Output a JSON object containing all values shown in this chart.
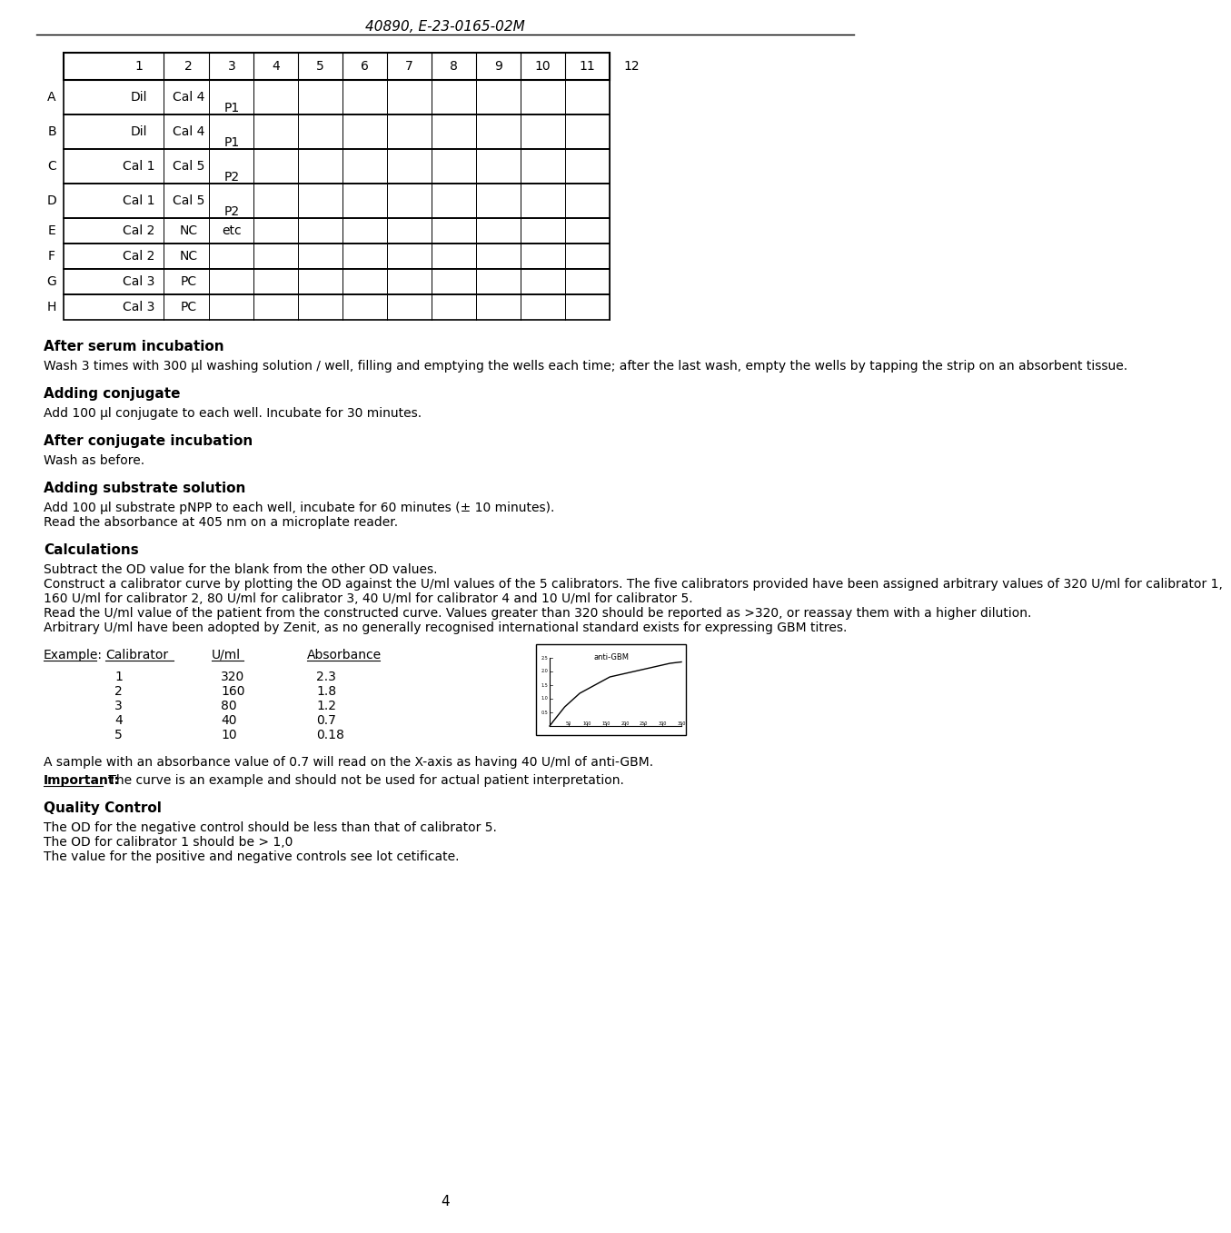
{
  "header": "40890, E-23-0165-02M",
  "page_number": "4",
  "table_cols": [
    "1",
    "2",
    "3",
    "4",
    "5",
    "6",
    "7",
    "8",
    "9",
    "10",
    "11",
    "12"
  ],
  "table_rows": [
    {
      "row_label": "A",
      "col1": "Dil",
      "col2": "Cal 4",
      "col3": "P1",
      "col3_bottom": true
    },
    {
      "row_label": "B",
      "col1": "Dil",
      "col2": "Cal 4",
      "col3": "P1",
      "col3_bottom": true
    },
    {
      "row_label": "C",
      "col1": "Cal 1",
      "col2": "Cal 5",
      "col3": "P2",
      "col3_bottom": true
    },
    {
      "row_label": "D",
      "col1": "Cal 1",
      "col2": "Cal 5",
      "col3": "P2",
      "col3_bottom": true
    },
    {
      "row_label": "E",
      "col1": "Cal 2",
      "col2": "NC",
      "col3": "etc"
    },
    {
      "row_label": "F",
      "col1": "Cal 2",
      "col2": "NC",
      "col3": ""
    },
    {
      "row_label": "G",
      "col1": "Cal 3",
      "col2": "PC",
      "col3": ""
    },
    {
      "row_label": "H",
      "col1": "Cal 3",
      "col2": "PC",
      "col3": ""
    }
  ],
  "sections": [
    {
      "title": "After serum incubation",
      "body": "Wash 3 times with 300 µl washing solution / well, filling and emptying the wells each time; after the last wash, empty the wells by tapping the strip on an absorbent tissue."
    },
    {
      "title": "Adding conjugate",
      "body": "Add 100 µl conjugate to each well. Incubate for 30 minutes."
    },
    {
      "title": "After conjugate incubation",
      "body": "Wash as before."
    },
    {
      "title": "Adding substrate solution",
      "body": "Add 100 µl substrate pNPP to each well, incubate for 60 minutes (± 10 minutes).\nRead the absorbance at 405 nm on a microplate reader."
    },
    {
      "title": "Calculations",
      "body": "Subtract the OD value for the blank from the other OD values.\nConstruct a calibrator curve by plotting the OD against the U/ml values of the 5 calibrators. The five calibrators provided have been assigned arbitrary values of 320 U/ml for calibrator 1,\n160 U/ml for calibrator 2, 80 U/ml for calibrator 3, 40 U/ml for calibrator 4 and 10 U/ml for calibrator 5.\nRead the U/ml value of the patient from the constructed curve. Values greater than 320 should be reported as >320, or reassay them with a higher dilution.\nArbitrary U/ml have been adopted by Zenit, as no generally recognised international standard exists for expressing GBM titres."
    }
  ],
  "example_label": "Example:",
  "example_headers": [
    "Calibrator",
    "U/ml",
    "Absorbance"
  ],
  "example_data": [
    [
      "1",
      "320",
      "2.3"
    ],
    [
      "2",
      "160",
      "1.8"
    ],
    [
      "3",
      "80",
      "1.2"
    ],
    [
      "4",
      "40",
      "0.7"
    ],
    [
      "5",
      "10",
      "0.18"
    ]
  ],
  "sample_text": "A sample with an absorbance value of 0.7 will read on the X-axis as having 40 U/ml of anti-GBM.",
  "important_label": "Important:",
  "important_rest": " The curve is an example and should not be used for actual patient interpretation.",
  "quality_title": "Quality Control",
  "quality_body": "The OD for the negative control should be less than that of calibrator 5.\nThe OD for calibrator 1 should be > 1,0\nThe value for the positive and negative controls see lot cetificate.",
  "bg_color": "#ffffff",
  "text_color": "#000000"
}
